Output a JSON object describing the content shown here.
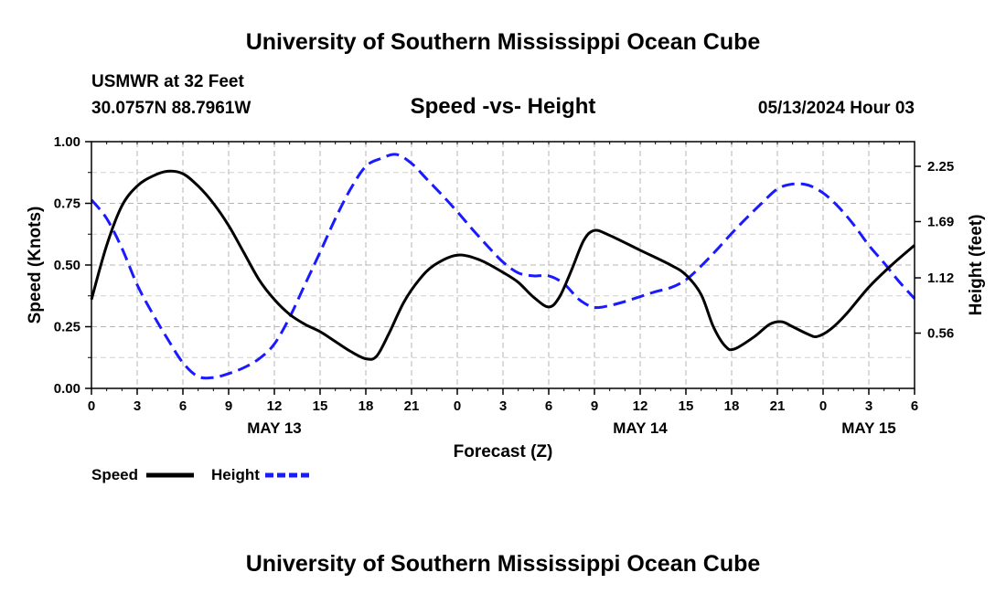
{
  "header": {
    "title": "University of Southern Mississippi Ocean Cube",
    "station": "USMWR at 32 Feet",
    "location": "30.0757N  88.7961W",
    "chart_title": "Speed -vs- Height",
    "timestamp": "05/13/2024 Hour 03"
  },
  "footer": {
    "title": "University of Southern Mississippi Ocean Cube"
  },
  "chart_data": {
    "type": "line",
    "title": "Speed -vs- Height",
    "xlabel": "Forecast (Z)",
    "ylabel_left": "Speed (Knots)",
    "ylabel_right": "Height (feet)",
    "x_unit": "hours since 2024-05-13 00Z",
    "xlim": [
      0,
      54
    ],
    "ylim_left": [
      0,
      1.0
    ],
    "ylim_right": [
      0.0,
      2.5
    ],
    "grid": true,
    "x_ticks": [
      {
        "x": 0,
        "label": "0"
      },
      {
        "x": 3,
        "label": "3"
      },
      {
        "x": 6,
        "label": "6"
      },
      {
        "x": 9,
        "label": "9"
      },
      {
        "x": 12,
        "label": "12"
      },
      {
        "x": 15,
        "label": "15"
      },
      {
        "x": 18,
        "label": "18"
      },
      {
        "x": 21,
        "label": "21"
      },
      {
        "x": 24,
        "label": "0"
      },
      {
        "x": 27,
        "label": "3"
      },
      {
        "x": 30,
        "label": "6"
      },
      {
        "x": 33,
        "label": "9"
      },
      {
        "x": 36,
        "label": "12"
      },
      {
        "x": 39,
        "label": "15"
      },
      {
        "x": 42,
        "label": "18"
      },
      {
        "x": 45,
        "label": "21"
      },
      {
        "x": 48,
        "label": "0"
      },
      {
        "x": 51,
        "label": "3"
      },
      {
        "x": 54,
        "label": "6"
      }
    ],
    "date_labels": [
      {
        "x": 12,
        "label": "MAY 13"
      },
      {
        "x": 36,
        "label": "MAY 14"
      },
      {
        "x": 51,
        "label": "MAY 15"
      }
    ],
    "left_ticks": [
      {
        "v": 0.0,
        "label": "0.00"
      },
      {
        "v": 0.25,
        "label": "0.25"
      },
      {
        "v": 0.5,
        "label": "0.50"
      },
      {
        "v": 0.75,
        "label": "0.75"
      },
      {
        "v": 1.0,
        "label": "1.00"
      }
    ],
    "right_ticks": [
      {
        "v": 0.56,
        "label": "0.56"
      },
      {
        "v": 1.12,
        "label": "1.12"
      },
      {
        "v": 1.69,
        "label": "1.69"
      },
      {
        "v": 2.25,
        "label": "2.25"
      }
    ],
    "series": [
      {
        "name": "Speed",
        "axis": "left",
        "color": "#000000",
        "dash": "solid",
        "points": [
          [
            0,
            0.36
          ],
          [
            1,
            0.58
          ],
          [
            2,
            0.74
          ],
          [
            3,
            0.82
          ],
          [
            4,
            0.86
          ],
          [
            5,
            0.88
          ],
          [
            6,
            0.87
          ],
          [
            7,
            0.82
          ],
          [
            8,
            0.75
          ],
          [
            9,
            0.66
          ],
          [
            10,
            0.55
          ],
          [
            11,
            0.44
          ],
          [
            12,
            0.36
          ],
          [
            13,
            0.3
          ],
          [
            14,
            0.26
          ],
          [
            15,
            0.23
          ],
          [
            16,
            0.19
          ],
          [
            17,
            0.15
          ],
          [
            18,
            0.12
          ],
          [
            18.7,
            0.13
          ],
          [
            19.5,
            0.22
          ],
          [
            20.5,
            0.35
          ],
          [
            21.5,
            0.44
          ],
          [
            22.5,
            0.5
          ],
          [
            24,
            0.54
          ],
          [
            25.5,
            0.52
          ],
          [
            27,
            0.47
          ],
          [
            28,
            0.43
          ],
          [
            29,
            0.37
          ],
          [
            30,
            0.33
          ],
          [
            30.7,
            0.37
          ],
          [
            31.5,
            0.48
          ],
          [
            32.3,
            0.6
          ],
          [
            33,
            0.64
          ],
          [
            34,
            0.62
          ],
          [
            36,
            0.56
          ],
          [
            38,
            0.5
          ],
          [
            39,
            0.46
          ],
          [
            40,
            0.38
          ],
          [
            40.8,
            0.25
          ],
          [
            41.6,
            0.17
          ],
          [
            42.2,
            0.16
          ],
          [
            43.5,
            0.21
          ],
          [
            44.5,
            0.26
          ],
          [
            45.3,
            0.27
          ],
          [
            46,
            0.25
          ],
          [
            47,
            0.22
          ],
          [
            47.6,
            0.21
          ],
          [
            48.5,
            0.24
          ],
          [
            49.5,
            0.3
          ],
          [
            51,
            0.41
          ],
          [
            52.5,
            0.5
          ],
          [
            54,
            0.58
          ]
        ]
      },
      {
        "name": "Height",
        "axis": "right",
        "color": "#1a1aff",
        "dash": "dashed",
        "points": [
          [
            0,
            1.91
          ],
          [
            1,
            1.72
          ],
          [
            2,
            1.42
          ],
          [
            3,
            1.05
          ],
          [
            4,
            0.76
          ],
          [
            5,
            0.5
          ],
          [
            6,
            0.26
          ],
          [
            7,
            0.12
          ],
          [
            8,
            0.11
          ],
          [
            9,
            0.15
          ],
          [
            10,
            0.21
          ],
          [
            11,
            0.3
          ],
          [
            12,
            0.45
          ],
          [
            13,
            0.72
          ],
          [
            14,
            1.05
          ],
          [
            15,
            1.38
          ],
          [
            16,
            1.72
          ],
          [
            17,
            2.02
          ],
          [
            18,
            2.25
          ],
          [
            19,
            2.33
          ],
          [
            20,
            2.37
          ],
          [
            21,
            2.28
          ],
          [
            22,
            2.12
          ],
          [
            23,
            1.96
          ],
          [
            24,
            1.79
          ],
          [
            25,
            1.61
          ],
          [
            26,
            1.44
          ],
          [
            27,
            1.28
          ],
          [
            28,
            1.17
          ],
          [
            29,
            1.14
          ],
          [
            30,
            1.14
          ],
          [
            31,
            1.06
          ],
          [
            32,
            0.9
          ],
          [
            33,
            0.82
          ],
          [
            34,
            0.84
          ],
          [
            35,
            0.88
          ],
          [
            36,
            0.93
          ],
          [
            37,
            0.98
          ],
          [
            38,
            1.02
          ],
          [
            39,
            1.1
          ],
          [
            40,
            1.24
          ],
          [
            41,
            1.4
          ],
          [
            42,
            1.57
          ],
          [
            43,
            1.73
          ],
          [
            44,
            1.88
          ],
          [
            45,
            2.02
          ],
          [
            46,
            2.07
          ],
          [
            47,
            2.06
          ],
          [
            48,
            1.98
          ],
          [
            49,
            1.84
          ],
          [
            50,
            1.66
          ],
          [
            51,
            1.45
          ],
          [
            52,
            1.27
          ],
          [
            53,
            1.08
          ],
          [
            54,
            0.91
          ]
        ]
      }
    ],
    "legend": [
      {
        "name": "Speed",
        "color": "#000000",
        "dash": "solid"
      },
      {
        "name": "Height",
        "color": "#1a1aff",
        "dash": "dashed"
      }
    ],
    "legend_position": "bottom-left"
  }
}
